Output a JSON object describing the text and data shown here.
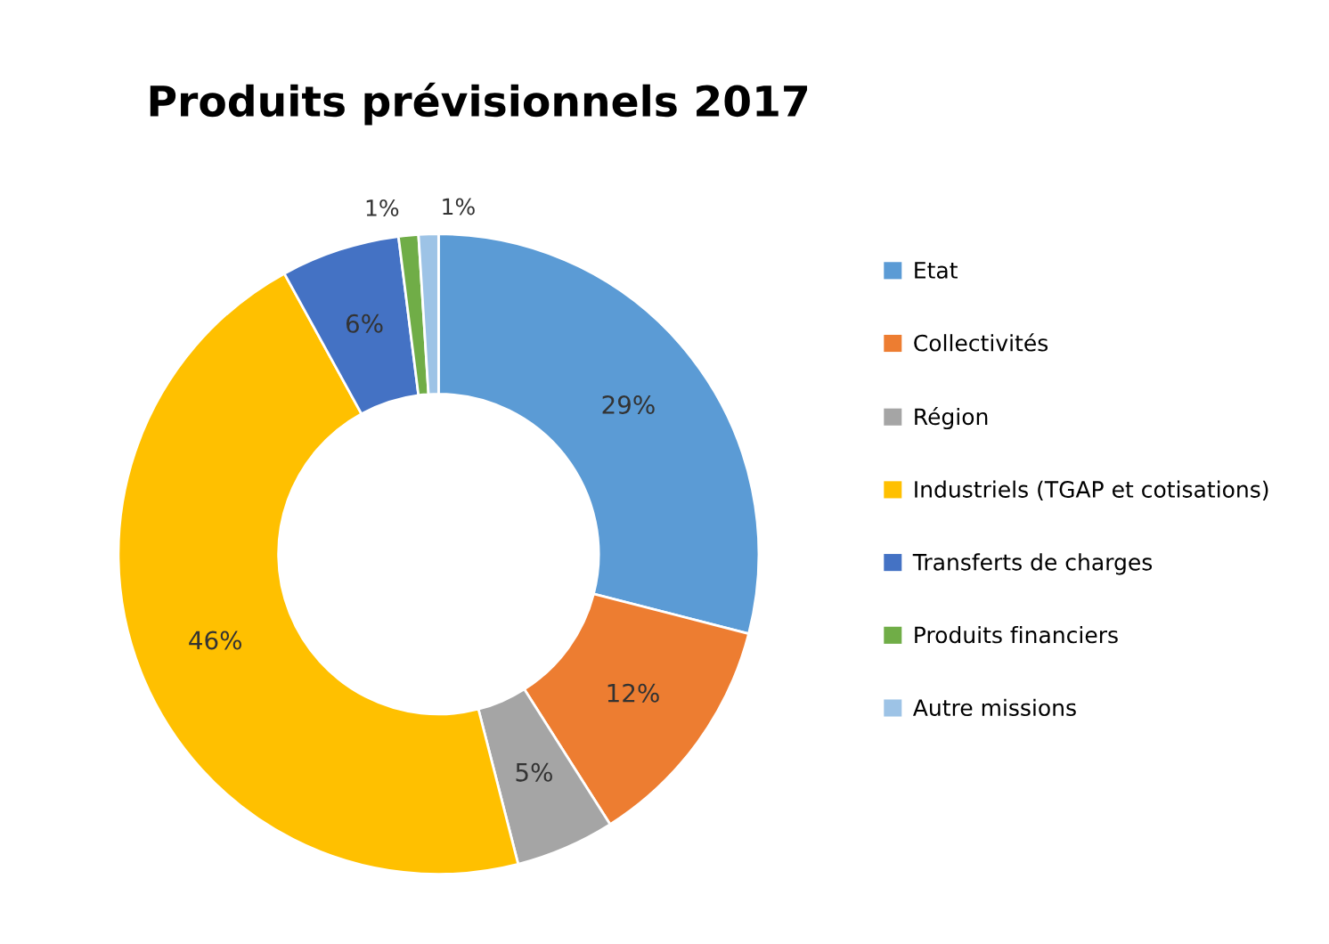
{
  "chart_data": {
    "type": "donut",
    "title": "Produits prévisionnels 2017",
    "categories": [
      "Etat",
      "Collectivités",
      "Région",
      "Industriels (TGAP et cotisations)",
      "Transferts de charges",
      "Produits financiers",
      "Autre missions"
    ],
    "values": [
      29,
      12,
      5,
      46,
      6,
      1,
      1
    ],
    "colors": [
      "#5b9bd5",
      "#ed7d31",
      "#a5a5a5",
      "#ffc000",
      "#4472c4",
      "#70ad47",
      "#9dc3e6"
    ],
    "value_labels": [
      "29%",
      "12%",
      "5%",
      "46%",
      "6%",
      "1%",
      "1%"
    ],
    "legend": "right"
  }
}
